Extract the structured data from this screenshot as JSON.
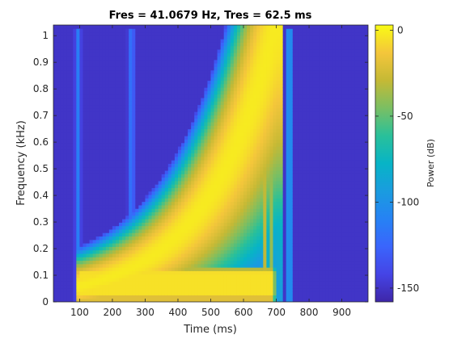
{
  "chart_data": {
    "type": "heatmap",
    "title": "Fres = 41.0679 Hz, Tres = 62.5 ms",
    "xlabel": "Time (ms)",
    "ylabel": "Frequency (kHz)",
    "xlim": [
      20,
      980
    ],
    "ylim": [
      0,
      1.04
    ],
    "x_ticks": [
      100,
      200,
      300,
      400,
      500,
      600,
      700,
      800,
      900
    ],
    "y_ticks": [
      0,
      0.1,
      0.2,
      0.3,
      0.4,
      0.5,
      0.6,
      0.7,
      0.8,
      0.9,
      1
    ],
    "y_tick_labels": [
      "0",
      "0.1",
      "0.2",
      "0.3",
      "0.4",
      "0.5",
      "0.6",
      "0.7",
      "0.8",
      "0.9",
      "1"
    ],
    "colorbar": {
      "label": "Power (dB)",
      "range": [
        -158,
        3
      ],
      "ticks": [
        -150,
        -100,
        -50,
        0
      ],
      "tick_labels": [
        "-150",
        "-100",
        "-50",
        "0"
      ],
      "colormap": "parula"
    },
    "background_power_db": -150,
    "bands": [
      {
        "description": "low-frequency tone",
        "t_start": 90,
        "t_end": 700,
        "f_low": 0.0,
        "f_high": 0.11,
        "power_db": -5
      },
      {
        "description": "exponential chirp",
        "t_start": 100,
        "t_end": 700,
        "f_start": 0.06,
        "f_end": 1.05,
        "width_khz": 0.06,
        "power_db": -2
      }
    ],
    "vertical_streaks": [
      {
        "t": 95,
        "width_ms": 12,
        "f_max": 1.03,
        "power_db": -112
      },
      {
        "t": 258,
        "width_ms": 14,
        "f_max": 1.03,
        "power_db": -112
      },
      {
        "t": 590,
        "width_ms": 14,
        "f_max": 1.03,
        "power_db": -110
      },
      {
        "t": 648,
        "width_ms": 10,
        "f_max": 1.03,
        "power_db": -80
      },
      {
        "t": 665,
        "width_ms": 14,
        "f_max": 1.03,
        "power_db": -30
      },
      {
        "t": 682,
        "width_ms": 14,
        "f_max": 1.03,
        "power_db": -10
      },
      {
        "t": 740,
        "width_ms": 14,
        "f_max": 1.03,
        "power_db": -80
      }
    ],
    "grid": false
  }
}
